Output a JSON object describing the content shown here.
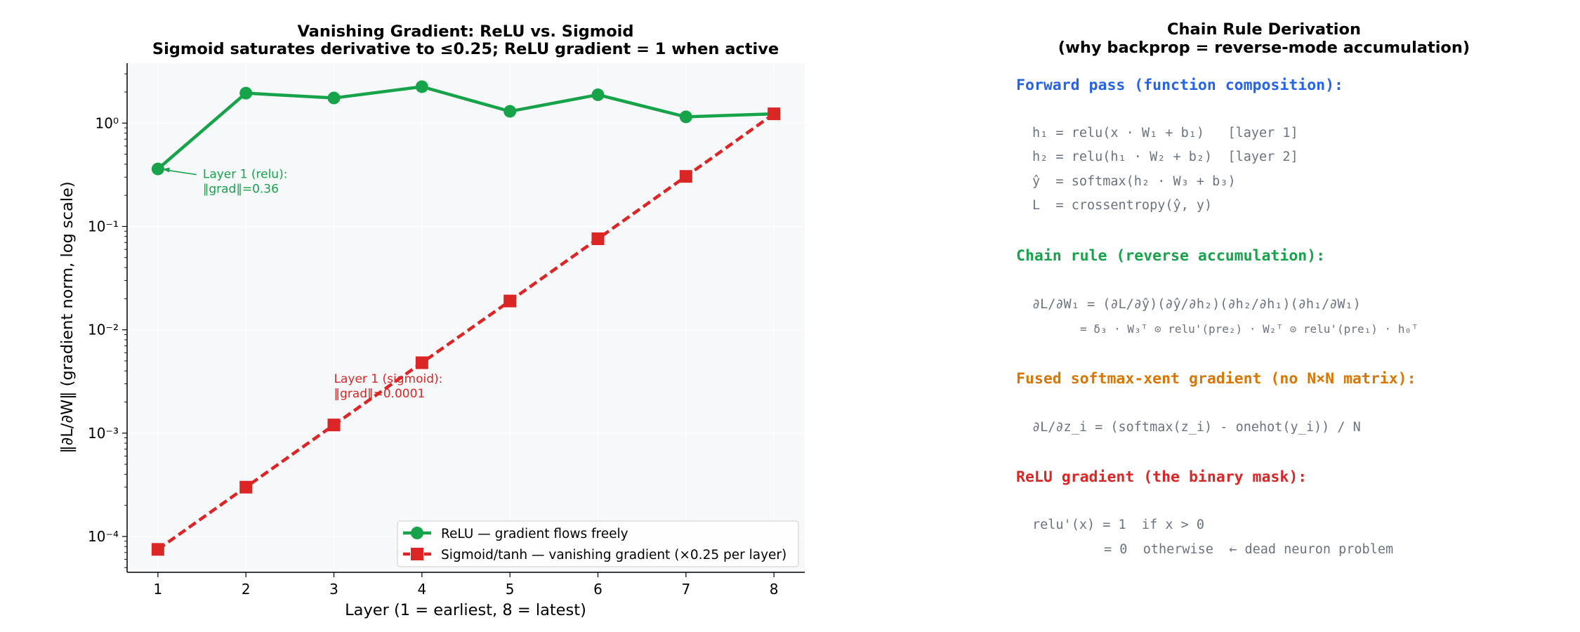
{
  "chart_data": {
    "type": "line",
    "title": "Vanishing Gradient: ReLU vs. Sigmoid",
    "subtitle": "Sigmoid saturates derivative to ≤0.25; ReLU gradient = 1 when active",
    "xlabel": "Layer (1 = earliest, 8 = latest)",
    "ylabel": "‖∂L/∂W‖ (gradient norm, log scale)",
    "x": [
      1,
      2,
      3,
      4,
      5,
      6,
      7,
      8
    ],
    "y_scale": "log",
    "ylim": [
      4.5e-05,
      3.8
    ],
    "xlim": [
      0.65,
      8.35
    ],
    "y_ticks": [
      0.0001,
      0.001,
      0.01,
      0.1,
      1
    ],
    "grid": true,
    "legend_position": "lower-right",
    "series": [
      {
        "name": "ReLU — gradient flows freely",
        "color": "#16a34a",
        "line": "solid",
        "marker": "circle",
        "values": [
          0.36,
          1.95,
          1.75,
          2.25,
          1.3,
          1.88,
          1.15,
          1.23
        ]
      },
      {
        "name": "Sigmoid/tanh — vanishing gradient (×0.25 per layer)",
        "color": "#dc2626",
        "line": "dashed",
        "marker": "square",
        "values": [
          7.5e-05,
          0.0003,
          0.0012,
          0.0048,
          0.019,
          0.076,
          0.305,
          1.23
        ]
      }
    ],
    "annotations": [
      {
        "series": 0,
        "x": 1,
        "lines": [
          "Layer 1 (relu):",
          "‖grad‖=0.36"
        ],
        "color": "#16a34a"
      },
      {
        "series": 1,
        "x": 1,
        "lines": [
          "Layer 1 (sigmoid):",
          "‖grad‖=0.0001"
        ],
        "color": "#dc2626"
      }
    ]
  },
  "derivation": {
    "title_line1": "Chain Rule Derivation",
    "title_line2": "(why backprop = reverse-mode accumulation)",
    "forward_heading": "Forward pass (function composition):",
    "forward_lines": [
      "h₁ = relu(x · W₁ + b₁)   [layer 1]",
      "h₂ = relu(h₁ · W₂ + b₂)  [layer 2]",
      "ŷ  = softmax(h₂ · W₃ + b₃)",
      "L  = crossentropy(ŷ, y)"
    ],
    "chain_heading": "Chain rule (reverse accumulation):",
    "chain_line1": "∂L/∂W₁ = (∂L/∂ŷ)(∂ŷ/∂h₂)(∂h₂/∂h₁)(∂h₁/∂W₁)",
    "chain_line2": "= δ₃ · W₃ᵀ ⊙ relu'(pre₂) · W₂ᵀ ⊙ relu'(pre₁) · h₀ᵀ",
    "fused_heading": "Fused softmax-xent gradient (no N×N matrix):",
    "fused_line": "∂L/∂z_i = (softmax(z_i) - onehot(y_i)) / N",
    "relu_heading": "ReLU gradient (the binary mask):",
    "relu_line1": "relu'(x) = 1  if x > 0",
    "relu_line2": "= 0  otherwise  ← dead neuron problem",
    "colors": {
      "forward": "#2563eb",
      "chain": "#16a34a",
      "fused": "#d97706",
      "relu": "#dc2626"
    }
  }
}
